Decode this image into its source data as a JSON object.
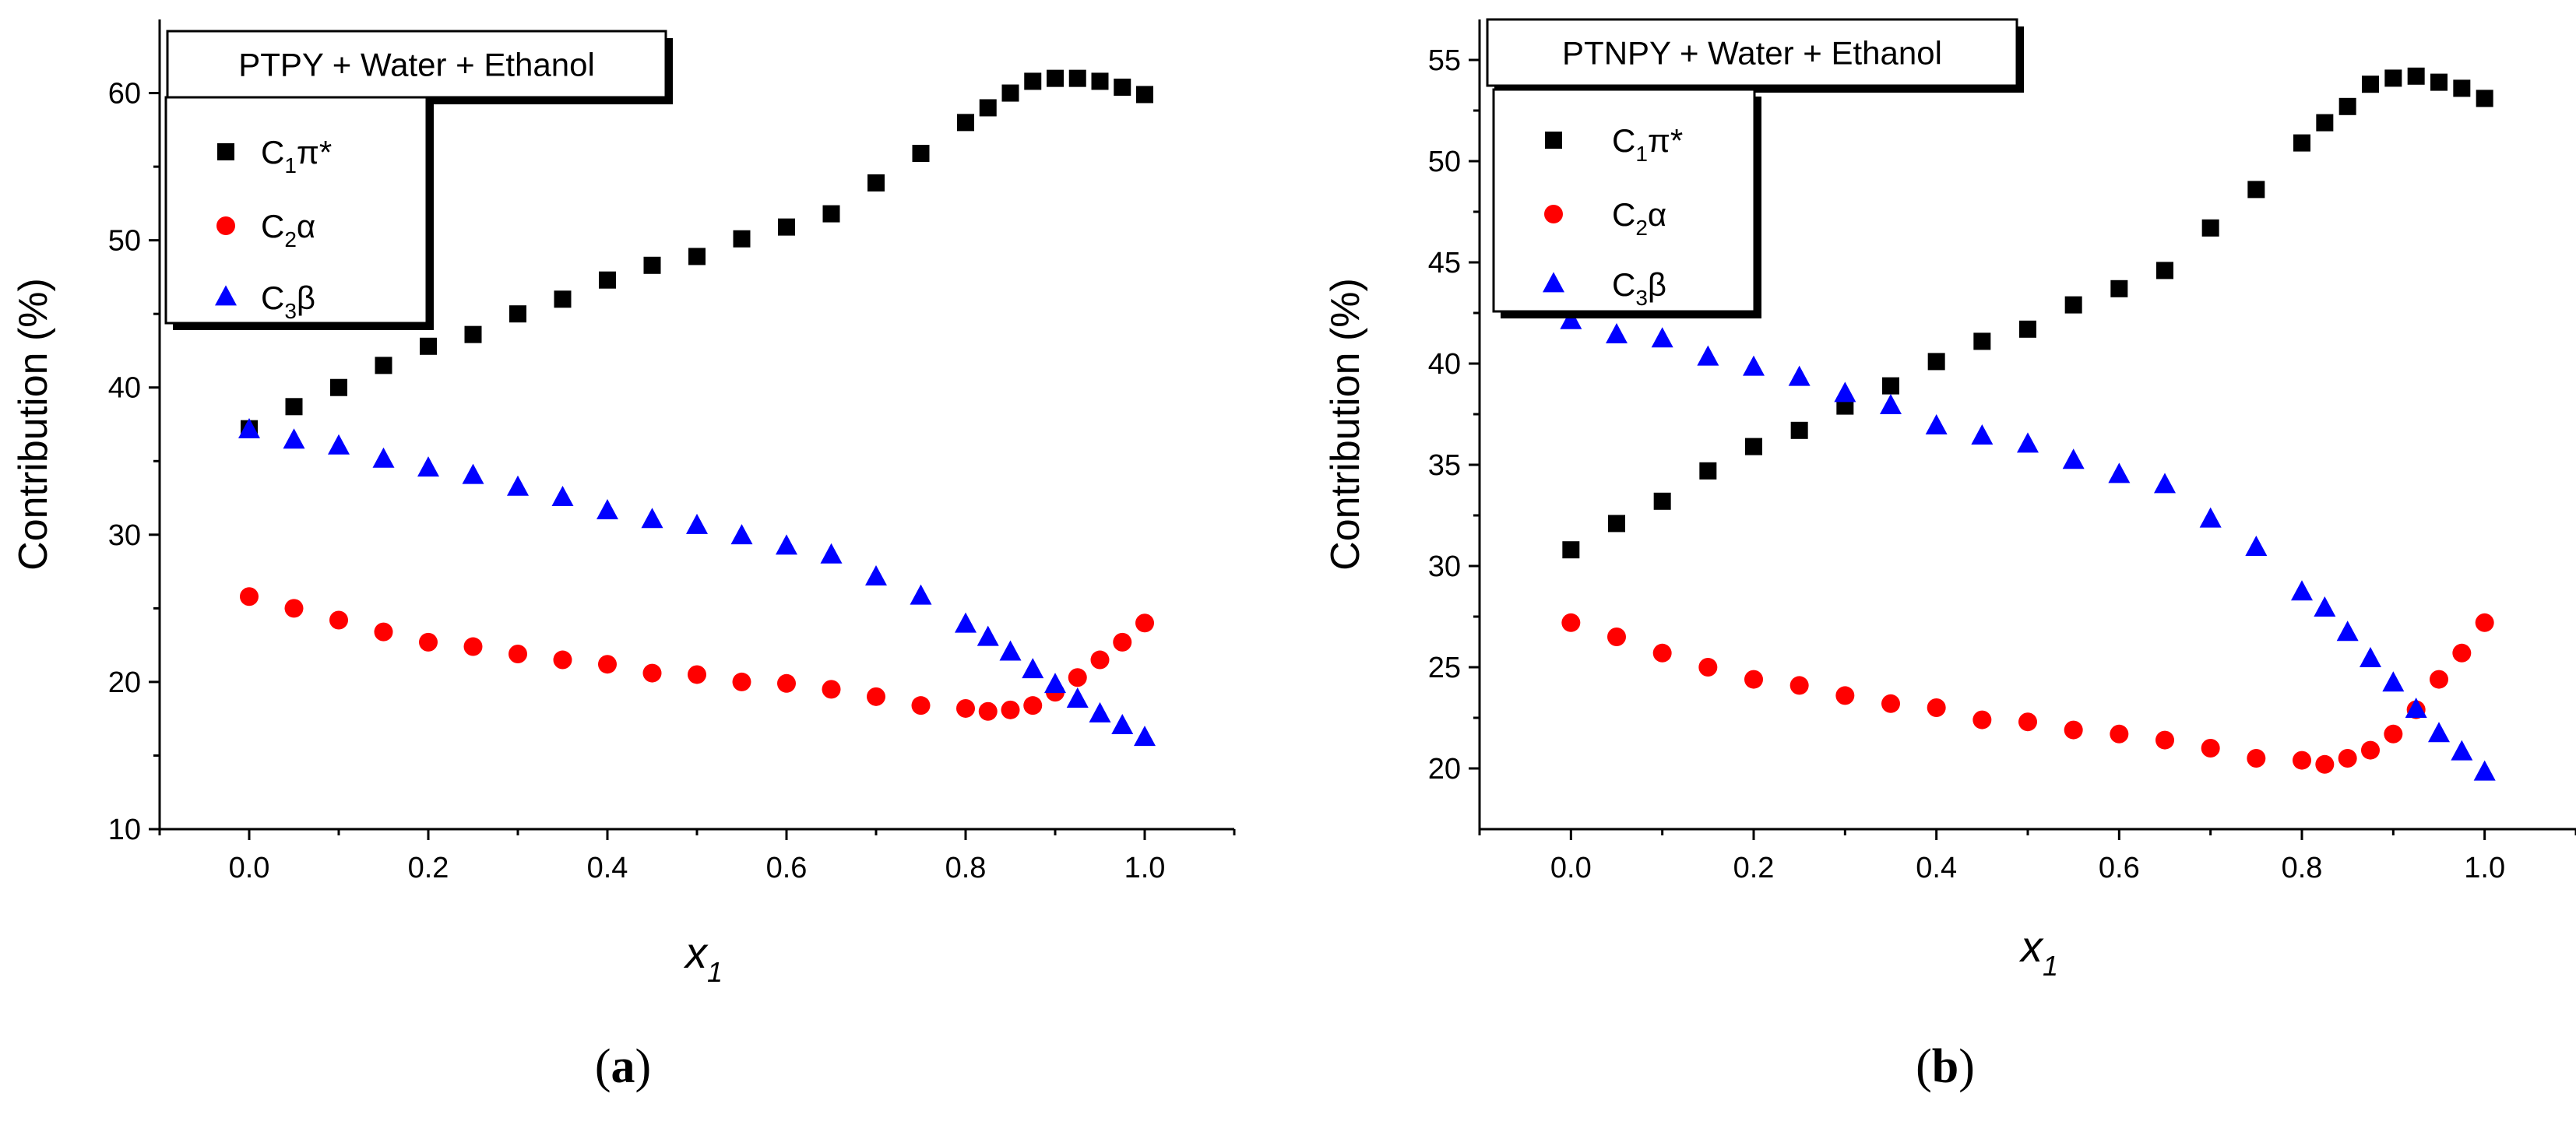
{
  "chart_data": [
    {
      "type": "scatter",
      "panel_label": "a",
      "title": "PTPY + Water + Ethanol",
      "xlabel": "x",
      "xlabel_sub": "1",
      "ylabel": "Contribution (%)",
      "xlim": [
        -0.1,
        1.1
      ],
      "ylim": [
        10,
        65
      ],
      "xticks": [
        0.0,
        0.2,
        0.4,
        0.6,
        0.8,
        1.0
      ],
      "xtick_labels": [
        "0.0",
        "0.2",
        "0.4",
        "0.6",
        "0.8",
        "1.0"
      ],
      "yticks": [
        10,
        20,
        30,
        40,
        50,
        60
      ],
      "ytick_labels": [
        "10",
        "20",
        "30",
        "40",
        "50",
        "60"
      ],
      "x": [
        0,
        0.05,
        0.1,
        0.15,
        0.2,
        0.25,
        0.3,
        0.35,
        0.4,
        0.45,
        0.5,
        0.55,
        0.6,
        0.65,
        0.7,
        0.75,
        0.8,
        0.825,
        0.85,
        0.875,
        0.9,
        0.925,
        0.95,
        0.975,
        1.0
      ],
      "legend_position": "top-left",
      "series": [
        {
          "name_main": "C",
          "name_sub": "1",
          "name_rest": "π*",
          "marker": "square",
          "color": "#000000",
          "values": [
            37.2,
            38.7,
            40.0,
            41.5,
            42.8,
            43.6,
            45.0,
            46.0,
            47.3,
            48.3,
            48.9,
            50.1,
            50.9,
            51.8,
            53.9,
            55.9,
            58.0,
            59.0,
            60.0,
            60.8,
            61.0,
            61.0,
            60.8,
            60.4,
            59.9
          ]
        },
        {
          "name_main": "C",
          "name_sub": "2",
          "name_rest": "α",
          "marker": "circle",
          "color": "#ff0000",
          "values": [
            25.8,
            25.0,
            24.2,
            23.4,
            22.7,
            22.4,
            21.9,
            21.5,
            21.2,
            20.6,
            20.5,
            20.0,
            19.9,
            19.5,
            19.0,
            18.4,
            18.2,
            18.0,
            18.1,
            18.4,
            19.3,
            20.3,
            21.5,
            22.7,
            24.0
          ]
        },
        {
          "name_main": "C",
          "name_sub": "3",
          "name_rest": "β",
          "marker": "triangle",
          "color": "#0000ff",
          "values": [
            37.1,
            36.4,
            36.0,
            35.1,
            34.5,
            34.0,
            33.2,
            32.5,
            31.6,
            31.0,
            30.6,
            29.9,
            29.2,
            28.6,
            27.1,
            25.8,
            23.9,
            23.0,
            22.0,
            20.8,
            19.8,
            18.8,
            17.8,
            17.0,
            16.2
          ]
        }
      ]
    },
    {
      "type": "scatter",
      "panel_label": "b",
      "title": "PTNPY + Water + Ethanol",
      "xlabel": "x",
      "xlabel_sub": "1",
      "ylabel": "Contribution (%)",
      "xlim": [
        -0.1,
        1.1
      ],
      "ylim": [
        17,
        57
      ],
      "xticks": [
        0.0,
        0.2,
        0.4,
        0.6,
        0.8,
        1.0
      ],
      "xtick_labels": [
        "0.0",
        "0.2",
        "0.4",
        "0.6",
        "0.8",
        "1.0"
      ],
      "yticks": [
        20,
        25,
        30,
        35,
        40,
        45,
        50,
        55
      ],
      "ytick_labels": [
        "20",
        "25",
        "30",
        "35",
        "40",
        "45",
        "50",
        "55"
      ],
      "x": [
        0,
        0.05,
        0.1,
        0.15,
        0.2,
        0.25,
        0.3,
        0.35,
        0.4,
        0.45,
        0.5,
        0.55,
        0.6,
        0.65,
        0.7,
        0.75,
        0.8,
        0.825,
        0.85,
        0.875,
        0.9,
        0.925,
        0.95,
        0.975,
        1.0
      ],
      "legend_position": "top-left",
      "series": [
        {
          "name_main": "C",
          "name_sub": "1",
          "name_rest": "π*",
          "marker": "square",
          "color": "#000000",
          "values": [
            30.8,
            32.1,
            33.2,
            34.7,
            35.9,
            36.7,
            37.9,
            38.9,
            40.1,
            41.1,
            41.7,
            42.9,
            43.7,
            44.6,
            46.7,
            48.6,
            50.9,
            51.9,
            52.7,
            53.8,
            54.1,
            54.2,
            53.9,
            53.6,
            53.1
          ]
        },
        {
          "name_main": "C",
          "name_sub": "2",
          "name_rest": "α",
          "marker": "circle",
          "color": "#ff0000",
          "values": [
            27.2,
            26.5,
            25.7,
            25.0,
            24.4,
            24.1,
            23.6,
            23.2,
            23.0,
            22.4,
            22.3,
            21.9,
            21.7,
            21.4,
            21.0,
            20.5,
            20.4,
            20.2,
            20.5,
            20.9,
            21.7,
            22.9,
            24.4,
            25.7,
            27.2
          ]
        },
        {
          "name_main": "C",
          "name_sub": "3",
          "name_rest": "β",
          "marker": "triangle",
          "color": "#0000ff",
          "values": [
            42.1,
            41.4,
            41.2,
            40.3,
            39.8,
            39.3,
            38.5,
            37.9,
            36.9,
            36.4,
            36.0,
            35.2,
            34.5,
            34.0,
            32.3,
            30.9,
            28.7,
            27.9,
            26.7,
            25.4,
            24.2,
            22.9,
            21.7,
            20.8,
            19.8
          ]
        }
      ]
    }
  ]
}
